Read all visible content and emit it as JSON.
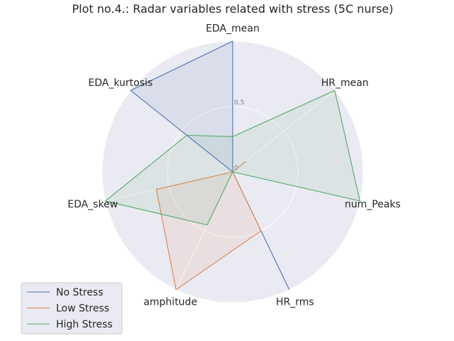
{
  "chart_data": {
    "type": "radar",
    "title": "Plot no.4.: Radar variables related with stress (5C nurse)",
    "axes": [
      "EDA_mean",
      "HR_mean",
      "num_Peaks",
      "HR_rms",
      "amphitude",
      "EDA_skew",
      "EDA_kurtosis"
    ],
    "rticks": [
      "0",
      "0.5"
    ],
    "rlim": [
      0,
      1
    ],
    "grid": true,
    "legend_position": "lower-left",
    "series": [
      {
        "name": "No Stress",
        "color": "#4c72b0",
        "values": [
          1.0,
          0.0,
          0.0,
          1.0,
          0.0,
          0.0,
          1.0
        ]
      },
      {
        "name": "Low Stress",
        "color": "#dd8452",
        "values": [
          0.0,
          0.13,
          0.0,
          0.5,
          1.0,
          0.6,
          0.0
        ]
      },
      {
        "name": "High Stress",
        "color": "#55a868",
        "values": [
          0.27,
          1.0,
          1.0,
          0.0,
          0.45,
          1.0,
          0.45
        ]
      }
    ]
  }
}
